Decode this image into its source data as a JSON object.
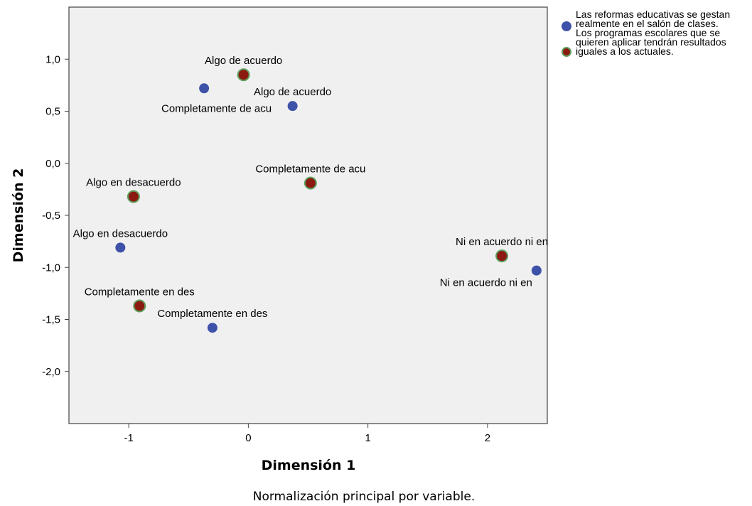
{
  "chart_data": {
    "type": "scatter",
    "xlabel": "Dimensión 1",
    "ylabel": "Dimensión 2",
    "note": "Normalización principal por variable.",
    "xlim": [
      -1.5,
      2.5
    ],
    "ylim": [
      -2.5,
      1.5
    ],
    "xticks": [
      -1,
      0,
      1,
      2
    ],
    "xtick_labels": [
      "-1",
      "0",
      "1",
      "2"
    ],
    "yticks": [
      1.0,
      0.5,
      0.0,
      -0.5,
      -1.0,
      -1.5,
      -2.0
    ],
    "ytick_labels": [
      "1,0",
      "0,5",
      "0,0",
      "-0,5",
      "-1,0",
      "-1,5",
      "-2,0"
    ],
    "grid": false,
    "legend_position": "right",
    "series": [
      {
        "name": "Las reformas educativas se gestan realmente en el salón de clases.",
        "color": "#3d52a8",
        "points": [
          {
            "x": -0.37,
            "y": 0.72,
            "label": "Completamente de acu",
            "label_pos": "below-left"
          },
          {
            "x": 0.37,
            "y": 0.55,
            "label": "Algo de acuerdo",
            "label_pos": "above"
          },
          {
            "x": -1.07,
            "y": -0.81,
            "label": "Algo en desacuerdo",
            "label_pos": "above"
          },
          {
            "x": -0.3,
            "y": -1.58,
            "label": "Completamente en des",
            "label_pos": "above"
          },
          {
            "x": 2.41,
            "y": -1.03,
            "label": "Ni en acuerdo ni en",
            "label_pos": "below-left"
          }
        ]
      },
      {
        "name": "Los programas escolares que se quieren aplicar tendrán resultados iguales a los actuales.",
        "color": "#8b1a10",
        "edge": "#5fa05f",
        "points": [
          {
            "x": -0.04,
            "y": 0.85,
            "label": "Algo de acuerdo",
            "label_pos": "above"
          },
          {
            "x": 0.52,
            "y": -0.19,
            "label": "Completamente de acu",
            "label_pos": "above"
          },
          {
            "x": -0.96,
            "y": -0.32,
            "label": "Algo en desacuerdo",
            "label_pos": "above"
          },
          {
            "x": -0.91,
            "y": -1.37,
            "label": "Completamente en des",
            "label_pos": "above"
          },
          {
            "x": 2.12,
            "y": -0.89,
            "label": "Ni en acuerdo ni en",
            "label_pos": "above"
          }
        ]
      }
    ]
  }
}
